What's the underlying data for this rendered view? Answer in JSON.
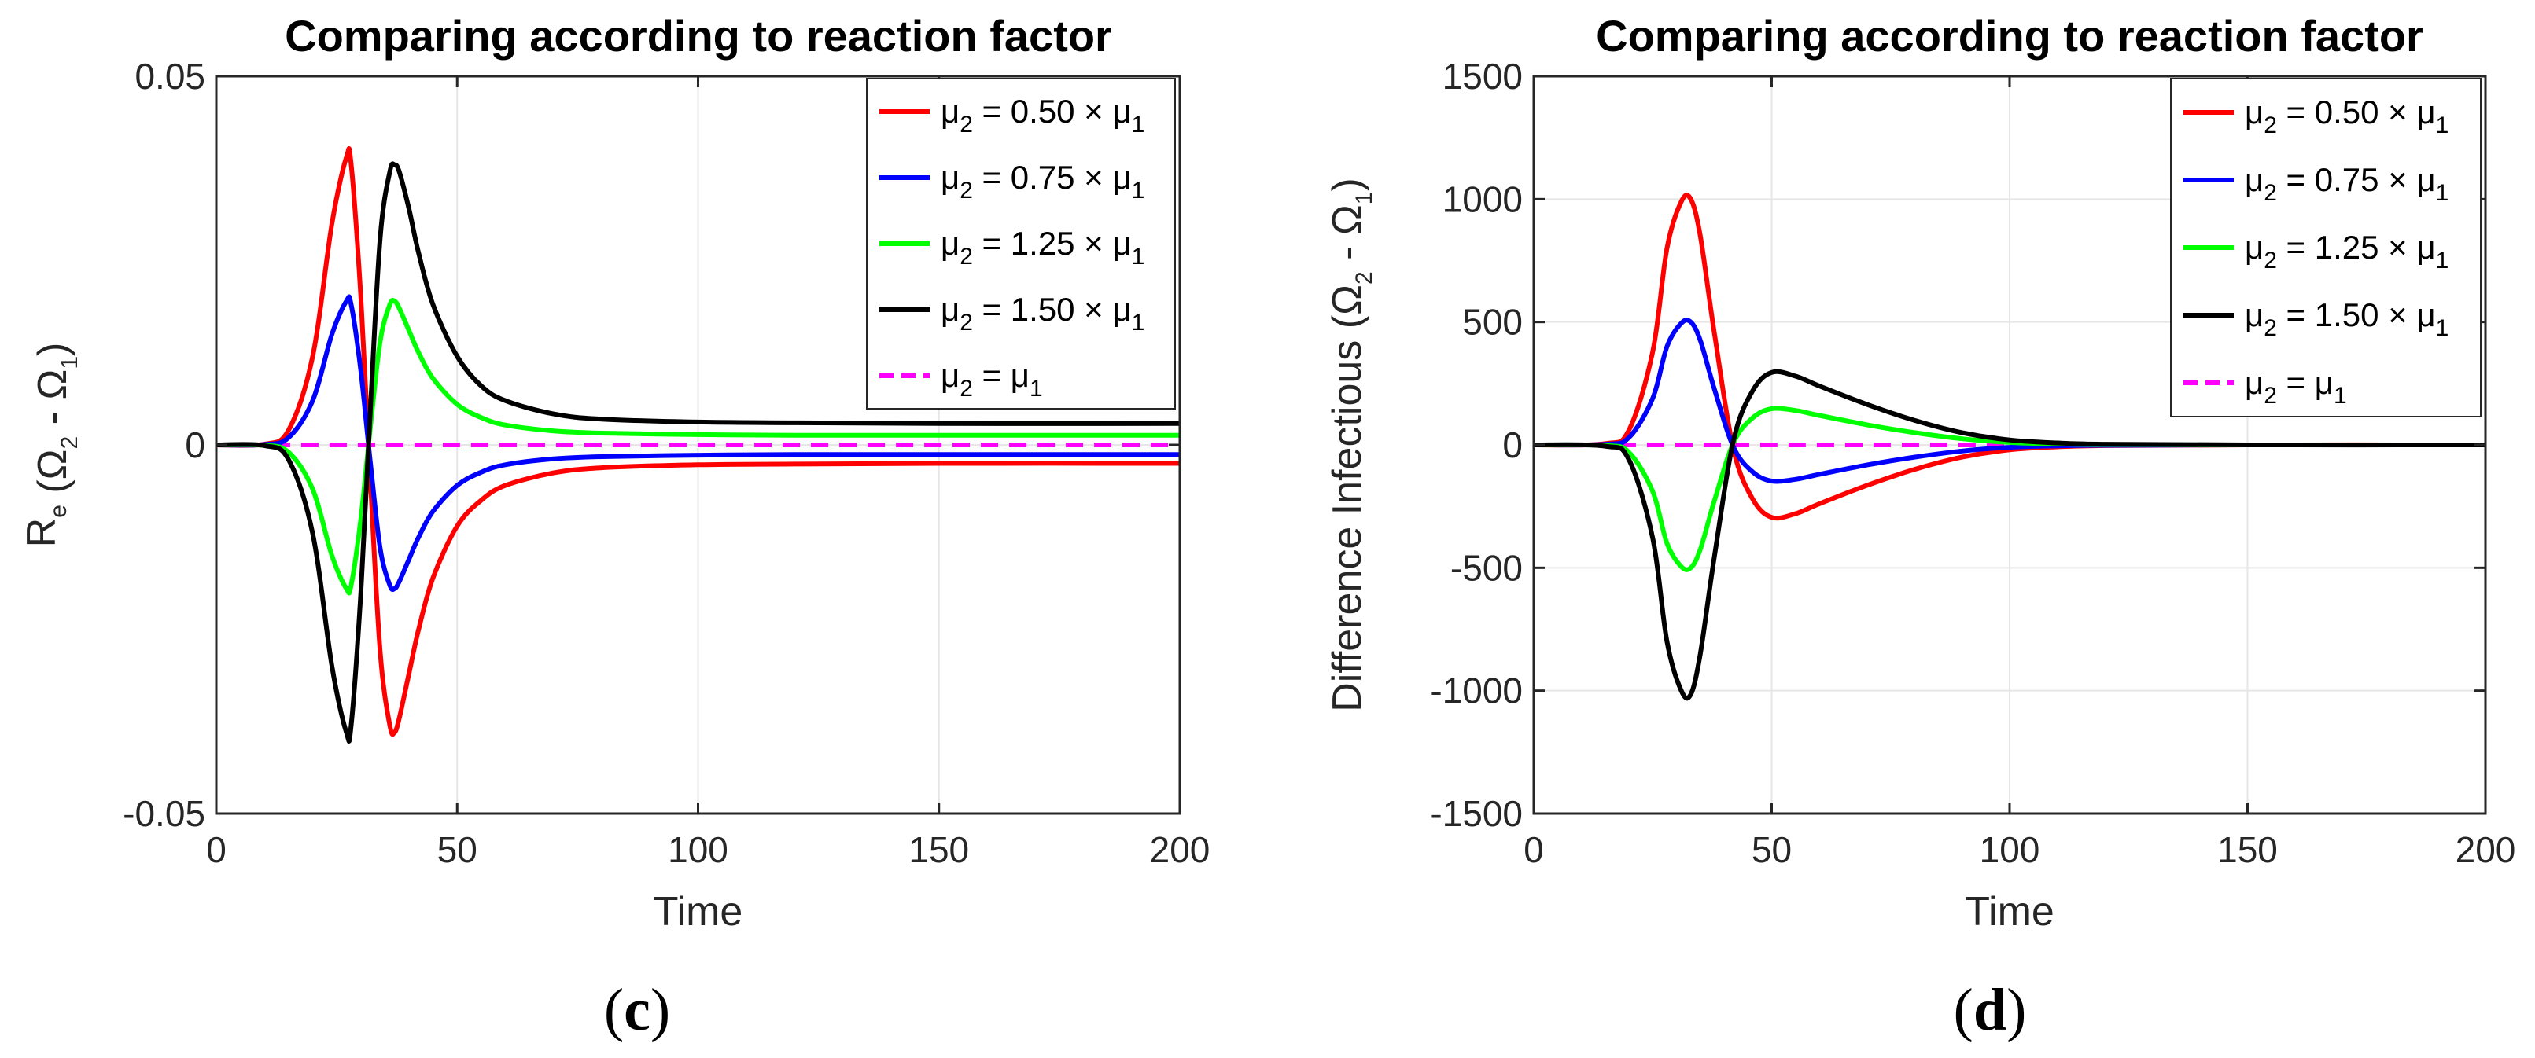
{
  "chart_data": [
    {
      "type": "line",
      "panel": "c",
      "caption_letter": "c",
      "title": "Comparing according to reaction factor",
      "xlabel": "Time",
      "ylabel": {
        "prefix": "R",
        "prefix_sub": "e",
        "open": " (Ω",
        "sub1": "2",
        "mid": " - Ω",
        "sub2": "1",
        "close": ")"
      },
      "xlim": [
        0,
        200
      ],
      "ylim": [
        -0.05,
        0.05
      ],
      "xticks": [
        0,
        50,
        100,
        150,
        200
      ],
      "xtick_labels": [
        "0",
        "50",
        "100",
        "150",
        "200"
      ],
      "yticks": [
        -0.05,
        0,
        0.05
      ],
      "ytick_labels": [
        "-0.05",
        "0",
        "0.05"
      ],
      "grid": true,
      "legend_position": "top-right",
      "series": [
        {
          "name": "μ2 = 0.50×μ1",
          "factor": "0.50",
          "color": "#ff0000",
          "dash": false,
          "x": [
            0,
            10,
            15,
            20,
            24,
            27,
            28,
            30,
            32,
            34,
            36,
            37,
            38,
            40,
            42,
            45,
            50,
            55,
            60,
            70,
            80,
            100,
            120,
            150,
            200
          ],
          "y": [
            0,
            0.0001,
            0.002,
            0.012,
            0.03,
            0.039,
            0.038,
            0.02,
            -0.005,
            -0.028,
            -0.038,
            -0.039,
            -0.037,
            -0.031,
            -0.025,
            -0.018,
            -0.011,
            -0.0075,
            -0.0055,
            -0.0038,
            -0.0031,
            -0.0027,
            -0.0026,
            -0.0025,
            -0.0025
          ]
        },
        {
          "name": "μ2 = 0.75×μ1",
          "factor": "0.75",
          "color": "#0000ff",
          "dash": false,
          "x": [
            0,
            10,
            15,
            20,
            24,
            27,
            28,
            30,
            32,
            34,
            36,
            37,
            38,
            40,
            42,
            45,
            50,
            55,
            60,
            70,
            80,
            100,
            120,
            150,
            200
          ],
          "y": [
            0,
            5e-05,
            0.001,
            0.006,
            0.015,
            0.0195,
            0.019,
            0.01,
            -0.0025,
            -0.014,
            -0.019,
            -0.0195,
            -0.0185,
            -0.0155,
            -0.0125,
            -0.009,
            -0.0055,
            -0.0037,
            -0.0027,
            -0.0019,
            -0.0016,
            -0.0014,
            -0.0013,
            -0.0013,
            -0.0013
          ]
        },
        {
          "name": "μ2 = 1.25×μ1",
          "factor": "1.25",
          "color": "#00ff00",
          "dash": false,
          "x": [
            0,
            10,
            15,
            20,
            24,
            27,
            28,
            30,
            32,
            34,
            36,
            37,
            38,
            40,
            42,
            45,
            50,
            55,
            60,
            70,
            80,
            100,
            120,
            150,
            200
          ],
          "y": [
            0,
            -5e-05,
            -0.001,
            -0.006,
            -0.015,
            -0.0195,
            -0.019,
            -0.01,
            0.0025,
            0.014,
            0.019,
            0.0195,
            0.0185,
            0.0155,
            0.0125,
            0.009,
            0.0055,
            0.0037,
            0.0027,
            0.0019,
            0.0016,
            0.0014,
            0.0013,
            0.0013,
            0.0013
          ]
        },
        {
          "name": "μ2 = 1.50×μ1",
          "factor": "1.50",
          "color": "#000000",
          "dash": false,
          "x": [
            0,
            10,
            15,
            20,
            24,
            27,
            28,
            30,
            32,
            34,
            36,
            37,
            38,
            40,
            42,
            45,
            50,
            55,
            60,
            70,
            80,
            100,
            120,
            150,
            200
          ],
          "y": [
            0,
            -0.0001,
            -0.002,
            -0.012,
            -0.03,
            -0.039,
            -0.038,
            -0.02,
            0.005,
            0.028,
            0.037,
            0.038,
            0.037,
            0.032,
            0.026,
            0.019,
            0.012,
            0.008,
            0.006,
            0.0042,
            0.0035,
            0.0031,
            0.003,
            0.0029,
            0.0029
          ]
        },
        {
          "name": "μ2 = μ1",
          "factor": "",
          "color": "#ff00ff",
          "dash": true,
          "x": [
            0,
            200
          ],
          "y": [
            0,
            0
          ]
        }
      ]
    },
    {
      "type": "line",
      "panel": "d",
      "caption_letter": "d",
      "title": "Comparing according to reaction factor",
      "xlabel": "Time",
      "ylabel": {
        "prefix": "Difference Infectious",
        "prefix_sub": "",
        "open": " (Ω",
        "sub1": "2",
        "mid": " - Ω",
        "sub2": "1",
        "close": ")"
      },
      "xlim": [
        0,
        200
      ],
      "ylim": [
        -1500,
        1500
      ],
      "xticks": [
        0,
        50,
        100,
        150,
        200
      ],
      "xtick_labels": [
        "0",
        "50",
        "100",
        "150",
        "200"
      ],
      "yticks": [
        -1500,
        -1000,
        -500,
        0,
        500,
        1000,
        1500
      ],
      "ytick_labels": [
        "-1500",
        "-1000",
        "-500",
        "0",
        "500",
        "1000",
        "1500"
      ],
      "grid": true,
      "legend_position": "top-right",
      "series": [
        {
          "name": "μ2 = 0.50×μ1",
          "factor": "0.50",
          "color": "#ff0000",
          "dash": false,
          "x": [
            0,
            15,
            20,
            25,
            28,
            31,
            33,
            35,
            38,
            42,
            46,
            50,
            55,
            60,
            70,
            80,
            90,
            100,
            110,
            120,
            150,
            200
          ],
          "y": [
            0,
            5,
            60,
            380,
            800,
            990,
            1000,
            850,
            450,
            -20,
            -220,
            -295,
            -280,
            -240,
            -165,
            -100,
            -50,
            -20,
            -8,
            -3,
            0,
            0
          ]
        },
        {
          "name": "μ2 = 0.75×μ1",
          "factor": "0.75",
          "color": "#0000ff",
          "dash": false,
          "x": [
            0,
            15,
            20,
            25,
            28,
            31,
            33,
            35,
            38,
            42,
            46,
            50,
            55,
            60,
            70,
            80,
            90,
            100,
            110,
            120,
            150,
            200
          ],
          "y": [
            0,
            2.5,
            30,
            190,
            400,
            495,
            500,
            425,
            225,
            -10,
            -110,
            -147,
            -140,
            -120,
            -82,
            -50,
            -25,
            -10,
            -4,
            -1.5,
            0,
            0
          ]
        },
        {
          "name": "μ2 = 1.25×μ1",
          "factor": "1.25",
          "color": "#00ff00",
          "dash": false,
          "x": [
            0,
            15,
            20,
            25,
            28,
            31,
            33,
            35,
            38,
            42,
            46,
            50,
            55,
            60,
            70,
            80,
            90,
            100,
            110,
            120,
            150,
            200
          ],
          "y": [
            0,
            -2.5,
            -30,
            -190,
            -400,
            -495,
            -500,
            -425,
            -225,
            10,
            110,
            147,
            140,
            120,
            82,
            50,
            25,
            10,
            4,
            1.5,
            0,
            0
          ]
        },
        {
          "name": "μ2 = 1.50×μ1",
          "factor": "1.50",
          "color": "#000000",
          "dash": false,
          "x": [
            0,
            15,
            20,
            25,
            28,
            31,
            33,
            35,
            38,
            42,
            46,
            50,
            55,
            60,
            70,
            80,
            90,
            100,
            110,
            120,
            150,
            200
          ],
          "y": [
            0,
            -5,
            -60,
            -380,
            -800,
            -1000,
            -1015,
            -850,
            -450,
            20,
            220,
            295,
            280,
            240,
            165,
            100,
            50,
            20,
            8,
            3,
            0,
            0
          ]
        },
        {
          "name": "μ2 = μ1",
          "factor": "",
          "color": "#ff00ff",
          "dash": true,
          "x": [
            0,
            200
          ],
          "y": [
            0,
            0
          ]
        }
      ]
    }
  ]
}
